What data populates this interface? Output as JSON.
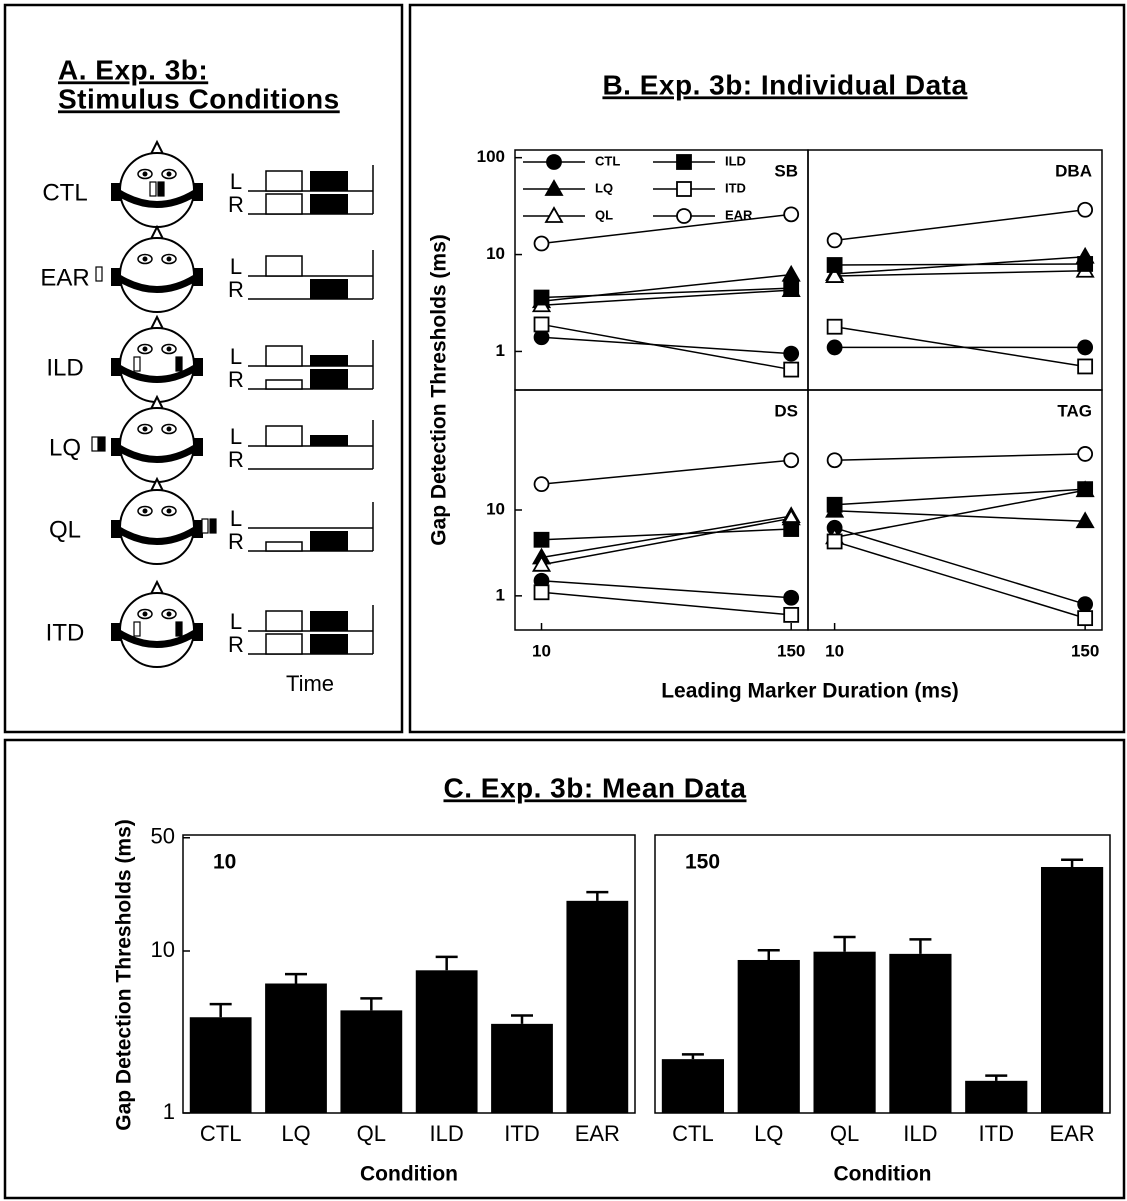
{
  "panel_a": {
    "title_lines": [
      "A. Exp. 3b:",
      "Stimulus Conditions"
    ],
    "conditions": [
      "CTL",
      "EAR",
      "ILD",
      "LQ",
      "QL",
      "ITD"
    ],
    "channels": [
      "L",
      "R"
    ],
    "time_label": "Time"
  },
  "panel_b": {
    "title": "B. Exp. 3b: Individual Data",
    "xlabel": "Leading Marker Duration (ms)",
    "ylabel": "Gap Detection Thresholds (ms)"
  },
  "panel_c": {
    "title": "C. Exp. 3b: Mean Data",
    "ylabel": "Gap Detection Thresholds (ms)"
  },
  "chart_data": [
    {
      "type": "line",
      "title": "SB",
      "x": [
        10,
        150
      ],
      "xlim": [
        7.5,
        180
      ],
      "log_x": true,
      "log_y": true,
      "ylim": [
        0.4,
        120
      ],
      "yticks": [
        1,
        10,
        100
      ],
      "legend": "upper left",
      "series": [
        {
          "name": "CTL",
          "marker": "circle",
          "filled": true,
          "color": "#000000",
          "values": [
            1.4,
            0.95
          ]
        },
        {
          "name": "LQ",
          "marker": "triangle",
          "filled": true,
          "color": "#000000",
          "values": [
            3.3,
            6.2
          ]
        },
        {
          "name": "QL",
          "marker": "triangle",
          "filled": false,
          "color": "#000000",
          "values": [
            3.0,
            4.3
          ]
        },
        {
          "name": "ILD",
          "marker": "square",
          "filled": true,
          "color": "#000000",
          "values": [
            3.6,
            4.5
          ]
        },
        {
          "name": "ITD",
          "marker": "square",
          "filled": false,
          "color": "#000000",
          "values": [
            1.9,
            0.65
          ]
        },
        {
          "name": "EAR",
          "marker": "circle",
          "filled": false,
          "color": "#000000",
          "values": [
            13,
            26
          ]
        }
      ]
    },
    {
      "type": "line",
      "title": "DBA",
      "x": [
        10,
        150
      ],
      "xlim": [
        7.5,
        180
      ],
      "log_x": true,
      "log_y": true,
      "ylim": [
        0.4,
        120
      ],
      "series": [
        {
          "marker": "circle",
          "filled": true,
          "color": "#000000",
          "values": [
            1.1,
            1.1
          ]
        },
        {
          "marker": "triangle",
          "filled": true,
          "color": "#000000",
          "values": [
            6.3,
            9.5
          ]
        },
        {
          "marker": "triangle",
          "filled": false,
          "color": "#000000",
          "values": [
            6.0,
            6.8
          ]
        },
        {
          "marker": "square",
          "filled": true,
          "color": "#000000",
          "values": [
            7.8,
            8.0
          ]
        },
        {
          "marker": "square",
          "filled": false,
          "color": "#000000",
          "values": [
            1.8,
            0.7
          ]
        },
        {
          "marker": "circle",
          "filled": false,
          "color": "#000000",
          "values": [
            14,
            29
          ]
        }
      ]
    },
    {
      "type": "line",
      "title": "DS",
      "x": [
        10,
        150
      ],
      "xlim": [
        7.5,
        180
      ],
      "xticks": [
        10,
        150
      ],
      "log_x": true,
      "log_y": true,
      "ylim": [
        0.4,
        250
      ],
      "yticks": [
        1,
        10
      ],
      "series": [
        {
          "marker": "circle",
          "filled": true,
          "color": "#000000",
          "values": [
            1.5,
            0.95
          ]
        },
        {
          "marker": "triangle",
          "filled": true,
          "color": "#000000",
          "values": [
            2.8,
            8.5
          ]
        },
        {
          "marker": "triangle",
          "filled": false,
          "color": "#000000",
          "values": [
            2.3,
            8.0
          ]
        },
        {
          "marker": "square",
          "filled": true,
          "color": "#000000",
          "values": [
            4.5,
            6.0
          ]
        },
        {
          "marker": "square",
          "filled": false,
          "color": "#000000",
          "values": [
            1.1,
            0.6
          ]
        },
        {
          "marker": "circle",
          "filled": false,
          "color": "#000000",
          "values": [
            20,
            38
          ]
        }
      ]
    },
    {
      "type": "line",
      "title": "TAG",
      "x": [
        10,
        150
      ],
      "xlim": [
        7.5,
        180
      ],
      "xticks": [
        10,
        150
      ],
      "log_x": true,
      "log_y": true,
      "ylim": [
        0.4,
        250
      ],
      "series": [
        {
          "marker": "circle",
          "filled": true,
          "color": "#000000",
          "values": [
            6.2,
            0.8
          ]
        },
        {
          "marker": "triangle",
          "filled": true,
          "color": "#000000",
          "values": [
            9.8,
            7.4
          ]
        },
        {
          "marker": "triangle",
          "filled": false,
          "color": "#000000",
          "values": [
            4.8,
            17
          ]
        },
        {
          "marker": "square",
          "filled": true,
          "color": "#000000",
          "values": [
            11.5,
            17.5
          ]
        },
        {
          "marker": "square",
          "filled": false,
          "color": "#000000",
          "values": [
            4.3,
            0.55
          ]
        },
        {
          "marker": "circle",
          "filled": false,
          "color": "#000000",
          "values": [
            38,
            45
          ]
        }
      ]
    },
    {
      "type": "bar",
      "title": "10",
      "categories": [
        "CTL",
        "LQ",
        "QL",
        "ILD",
        "ITD",
        "EAR"
      ],
      "values": [
        3.9,
        6.3,
        4.3,
        7.6,
        3.55,
        20.4
      ],
      "errors": [
        0.8,
        0.9,
        0.8,
        1.6,
        0.45,
        2.7
      ],
      "color": "#000000",
      "log_y": true,
      "ylim": [
        1,
        52
      ],
      "yticks": [
        1,
        10,
        50
      ],
      "xlabel": "Condition"
    },
    {
      "type": "bar",
      "title": "150",
      "categories": [
        "CTL",
        "LQ",
        "QL",
        "ILD",
        "ITD",
        "EAR"
      ],
      "values": [
        2.15,
        8.8,
        9.9,
        9.6,
        1.58,
        33
      ],
      "errors": [
        0.15,
        1.3,
        2.3,
        2.2,
        0.12,
        3.6
      ],
      "color": "#000000",
      "log_y": true,
      "ylim": [
        1,
        52
      ],
      "xlabel": "Condition"
    }
  ]
}
